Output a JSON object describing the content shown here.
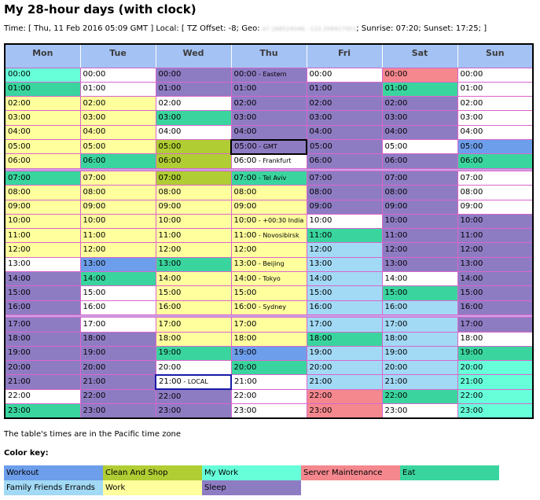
{
  "header": {
    "title": "My 28-hour days (with clock)",
    "time_prefix": "Time: [ Thu, 11 Feb 2016 05:09 GMT ] Local: [ TZ Offset: -8; Geo: ",
    "geo_redacted": "47.168524046, -122.256917951",
    "time_suffix": "; Sunrise: 07:20; Sunset: 17:25; ]"
  },
  "colors": {
    "workout": "#6d9eeb",
    "clean": "#b0cd33",
    "mywork": "#66ffd9",
    "server": "#f4888e",
    "eat": "#3ad59f",
    "family": "#a2d9f5",
    "work": "#ffff9e",
    "sleep": "#8e7cc3",
    "none": "#ffffff"
  },
  "days": [
    "Mon",
    "Tue",
    "Wed",
    "Thu",
    "Fri",
    "Sat",
    "Sun"
  ],
  "grid": [
    [
      [
        "00:00",
        "mywork",
        ""
      ],
      [
        "00:00",
        "none",
        ""
      ],
      [
        "00:00",
        "sleep",
        ""
      ],
      [
        "00:00",
        "sleep",
        "Eastern"
      ],
      [
        "00:00",
        "none",
        ""
      ],
      [
        "00:00",
        "server",
        ""
      ],
      [
        "00:00",
        "none",
        ""
      ]
    ],
    [
      [
        "01:00",
        "eat",
        ""
      ],
      [
        "01:00",
        "none",
        ""
      ],
      [
        "01:00",
        "sleep",
        ""
      ],
      [
        "01:00",
        "sleep",
        ""
      ],
      [
        "01:00",
        "sleep",
        ""
      ],
      [
        "01:00",
        "eat",
        ""
      ],
      [
        "01:00",
        "none",
        ""
      ]
    ],
    [
      [
        "02:00",
        "work",
        ""
      ],
      [
        "02:00",
        "work",
        ""
      ],
      [
        "02:00",
        "none",
        ""
      ],
      [
        "02:00",
        "sleep",
        ""
      ],
      [
        "02:00",
        "sleep",
        ""
      ],
      [
        "02:00",
        "sleep",
        ""
      ],
      [
        "02:00",
        "none",
        ""
      ]
    ],
    [
      [
        "03:00",
        "work",
        ""
      ],
      [
        "03:00",
        "work",
        ""
      ],
      [
        "03:00",
        "eat",
        ""
      ],
      [
        "03:00",
        "sleep",
        ""
      ],
      [
        "03:00",
        "sleep",
        ""
      ],
      [
        "03:00",
        "sleep",
        ""
      ],
      [
        "03:00",
        "none",
        ""
      ]
    ],
    [
      [
        "04:00",
        "work",
        ""
      ],
      [
        "04:00",
        "work",
        ""
      ],
      [
        "04:00",
        "none",
        ""
      ],
      [
        "04:00",
        "sleep",
        ""
      ],
      [
        "04:00",
        "sleep",
        ""
      ],
      [
        "04:00",
        "sleep",
        ""
      ],
      [
        "04:00",
        "none",
        ""
      ]
    ],
    [
      [
        "05:00",
        "work",
        ""
      ],
      [
        "05:00",
        "work",
        ""
      ],
      [
        "05:00",
        "clean",
        ""
      ],
      [
        "05:00",
        "sleep",
        "GMT"
      ],
      [
        "05:00",
        "sleep",
        ""
      ],
      [
        "05:00",
        "none",
        ""
      ],
      [
        "05:00",
        "workout",
        ""
      ]
    ],
    [
      [
        "06:00",
        "work",
        ""
      ],
      [
        "06:00",
        "eat",
        ""
      ],
      [
        "06:00",
        "clean",
        ""
      ],
      [
        "06:00",
        "none",
        "Frankfurt"
      ],
      [
        "06:00",
        "sleep",
        ""
      ],
      [
        "06:00",
        "sleep",
        ""
      ],
      [
        "06:00",
        "eat",
        ""
      ]
    ],
    [
      [
        "07:00",
        "eat",
        ""
      ],
      [
        "07:00",
        "work",
        ""
      ],
      [
        "07:00",
        "clean",
        ""
      ],
      [
        "07:00",
        "eat",
        "Tel Aviv"
      ],
      [
        "07:00",
        "sleep",
        ""
      ],
      [
        "07:00",
        "sleep",
        ""
      ],
      [
        "07:00",
        "none",
        ""
      ]
    ],
    [
      [
        "08:00",
        "work",
        ""
      ],
      [
        "08:00",
        "work",
        ""
      ],
      [
        "08:00",
        "work",
        ""
      ],
      [
        "08:00",
        "work",
        ""
      ],
      [
        "08:00",
        "sleep",
        ""
      ],
      [
        "08:00",
        "sleep",
        ""
      ],
      [
        "08:00",
        "none",
        ""
      ]
    ],
    [
      [
        "09:00",
        "work",
        ""
      ],
      [
        "09:00",
        "work",
        ""
      ],
      [
        "09:00",
        "work",
        ""
      ],
      [
        "09:00",
        "work",
        ""
      ],
      [
        "09:00",
        "sleep",
        ""
      ],
      [
        "09:00",
        "sleep",
        ""
      ],
      [
        "09:00",
        "none",
        ""
      ]
    ],
    [
      [
        "10:00",
        "work",
        ""
      ],
      [
        "10:00",
        "work",
        ""
      ],
      [
        "10:00",
        "work",
        ""
      ],
      [
        "10:00",
        "work",
        "+00:30 India"
      ],
      [
        "10:00",
        "none",
        ""
      ],
      [
        "10:00",
        "sleep",
        ""
      ],
      [
        "10:00",
        "sleep",
        ""
      ]
    ],
    [
      [
        "11:00",
        "work",
        ""
      ],
      [
        "11:00",
        "work",
        ""
      ],
      [
        "11:00",
        "work",
        ""
      ],
      [
        "11:00",
        "work",
        "Novosibirsk"
      ],
      [
        "11:00",
        "eat",
        ""
      ],
      [
        "11:00",
        "sleep",
        ""
      ],
      [
        "11:00",
        "sleep",
        ""
      ]
    ],
    [
      [
        "12:00",
        "work",
        ""
      ],
      [
        "12:00",
        "work",
        ""
      ],
      [
        "12:00",
        "work",
        ""
      ],
      [
        "12:00",
        "work",
        ""
      ],
      [
        "12:00",
        "family",
        ""
      ],
      [
        "12:00",
        "sleep",
        ""
      ],
      [
        "12:00",
        "sleep",
        ""
      ]
    ],
    [
      [
        "13:00",
        "none",
        ""
      ],
      [
        "13:00",
        "workout",
        ""
      ],
      [
        "13:00",
        "eat",
        ""
      ],
      [
        "13:00",
        "work",
        "Beijing"
      ],
      [
        "13:00",
        "family",
        ""
      ],
      [
        "13:00",
        "sleep",
        ""
      ],
      [
        "13:00",
        "sleep",
        ""
      ]
    ],
    [
      [
        "14:00",
        "sleep",
        ""
      ],
      [
        "14:00",
        "eat",
        ""
      ],
      [
        "14:00",
        "work",
        ""
      ],
      [
        "14:00",
        "work",
        "Tokyo"
      ],
      [
        "14:00",
        "family",
        ""
      ],
      [
        "14:00",
        "none",
        ""
      ],
      [
        "14:00",
        "sleep",
        ""
      ]
    ],
    [
      [
        "15:00",
        "sleep",
        ""
      ],
      [
        "15:00",
        "none",
        ""
      ],
      [
        "15:00",
        "work",
        ""
      ],
      [
        "15:00",
        "work",
        ""
      ],
      [
        "15:00",
        "family",
        ""
      ],
      [
        "15:00",
        "eat",
        ""
      ],
      [
        "15:00",
        "sleep",
        ""
      ]
    ],
    [
      [
        "16:00",
        "sleep",
        ""
      ],
      [
        "16:00",
        "none",
        ""
      ],
      [
        "16:00",
        "work",
        ""
      ],
      [
        "16:00",
        "work",
        "Sydney"
      ],
      [
        "16:00",
        "family",
        ""
      ],
      [
        "16:00",
        "family",
        ""
      ],
      [
        "16:00",
        "sleep",
        ""
      ]
    ],
    [
      [
        "17:00",
        "sleep",
        ""
      ],
      [
        "17:00",
        "none",
        ""
      ],
      [
        "17:00",
        "work",
        ""
      ],
      [
        "17:00",
        "work",
        ""
      ],
      [
        "17:00",
        "family",
        ""
      ],
      [
        "17:00",
        "family",
        ""
      ],
      [
        "17:00",
        "sleep",
        ""
      ]
    ],
    [
      [
        "18:00",
        "sleep",
        ""
      ],
      [
        "18:00",
        "sleep",
        ""
      ],
      [
        "18:00",
        "work",
        ""
      ],
      [
        "18:00",
        "work",
        ""
      ],
      [
        "18:00",
        "eat",
        ""
      ],
      [
        "18:00",
        "family",
        ""
      ],
      [
        "18:00",
        "none",
        ""
      ]
    ],
    [
      [
        "19:00",
        "sleep",
        ""
      ],
      [
        "19:00",
        "sleep",
        ""
      ],
      [
        "19:00",
        "eat",
        ""
      ],
      [
        "19:00",
        "workout",
        ""
      ],
      [
        "19:00",
        "family",
        ""
      ],
      [
        "19:00",
        "family",
        ""
      ],
      [
        "19:00",
        "eat",
        ""
      ]
    ],
    [
      [
        "20:00",
        "sleep",
        ""
      ],
      [
        "20:00",
        "sleep",
        ""
      ],
      [
        "20:00",
        "none",
        ""
      ],
      [
        "20:00",
        "eat",
        ""
      ],
      [
        "20:00",
        "family",
        ""
      ],
      [
        "20:00",
        "family",
        ""
      ],
      [
        "20:00",
        "mywork",
        ""
      ]
    ],
    [
      [
        "21:00",
        "sleep",
        ""
      ],
      [
        "21:00",
        "sleep",
        ""
      ],
      [
        "21:00",
        "none",
        "LOCAL"
      ],
      [
        "21:00",
        "none",
        ""
      ],
      [
        "21:00",
        "family",
        ""
      ],
      [
        "21:00",
        "family",
        ""
      ],
      [
        "21:00",
        "mywork",
        ""
      ]
    ],
    [
      [
        "22:00",
        "none",
        ""
      ],
      [
        "22:00",
        "sleep",
        ""
      ],
      [
        "22:00",
        "sleep",
        ""
      ],
      [
        "22:00",
        "none",
        ""
      ],
      [
        "22:00",
        "server",
        ""
      ],
      [
        "22:00",
        "eat",
        ""
      ],
      [
        "22:00",
        "mywork",
        ""
      ]
    ],
    [
      [
        "23:00",
        "eat",
        ""
      ],
      [
        "23:00",
        "sleep",
        ""
      ],
      [
        "23:00",
        "sleep",
        ""
      ],
      [
        "23:00",
        "none",
        ""
      ],
      [
        "23:00",
        "server",
        ""
      ],
      [
        "23:00",
        "none",
        ""
      ],
      [
        "23:00",
        "mywork",
        ""
      ]
    ]
  ],
  "gap_after_rows": [
    6,
    16
  ],
  "highlight": {
    "gmt": [
      5,
      3
    ],
    "local": [
      21,
      2
    ]
  },
  "footer": {
    "tz_note": "The table's times are in the Pacific time zone",
    "color_key_title": "Color key:"
  },
  "color_key": [
    {
      "label": "Workout",
      "color": "workout"
    },
    {
      "label": "Clean And Shop",
      "color": "clean"
    },
    {
      "label": "My Work",
      "color": "mywork"
    },
    {
      "label": "Server Maintenance",
      "color": "server"
    },
    {
      "label": "Eat",
      "color": "eat"
    },
    {
      "label": "Family Friends Errands",
      "color": "family"
    },
    {
      "label": "Work",
      "color": "work"
    },
    {
      "label": "Sleep",
      "color": "sleep"
    }
  ]
}
